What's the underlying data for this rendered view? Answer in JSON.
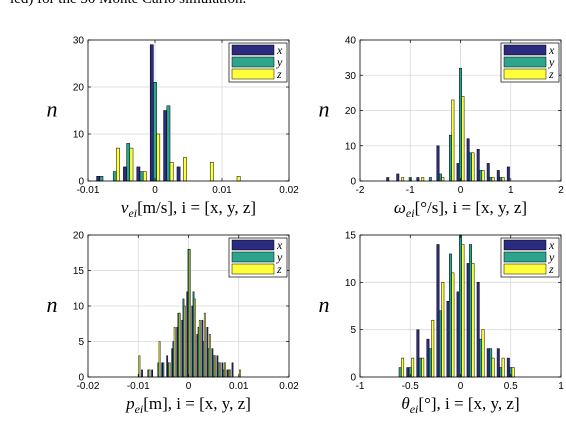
{
  "header_text": "led) for the 50   Monte Carlo simulation.",
  "colors": {
    "x": "#2b2b80",
    "y": "#2ca58d",
    "z": "#ffff3c",
    "edge": "#000000",
    "grid": "#d9d9d9"
  },
  "chart_data": [
    {
      "type": "bar",
      "xlim": [
        -0.01,
        0.02
      ],
      "ylim": [
        0,
        30
      ],
      "xticks": [
        "-0.01",
        "0",
        "0.01",
        "0.02"
      ],
      "xtick_values": [
        -0.01,
        0,
        0.01,
        0.02
      ],
      "yticks": [
        "0",
        "10",
        "20",
        "30"
      ],
      "ytick_values": [
        0,
        10,
        20,
        30
      ],
      "ylabel": "n",
      "xlabel_prefix": "v",
      "xlabel_sub": "ei",
      "xlabel_suffix": "[m/s],  i = [x, y, z]",
      "legend": [
        "x",
        "y",
        "z"
      ],
      "bin_width": 0.002,
      "bar_width_frac": 0.24,
      "series": [
        {
          "name": "x",
          "x": [
            -0.008,
            -0.004,
            -0.002,
            0.0,
            0.002,
            0.004
          ],
          "values": [
            1,
            3,
            3,
            29,
            15,
            3
          ]
        },
        {
          "name": "y",
          "x": [
            -0.008,
            -0.006,
            -0.004,
            -0.002,
            0.0,
            0.002
          ],
          "values": [
            1,
            2,
            8,
            2,
            21,
            16
          ]
        },
        {
          "name": "z",
          "x": [
            -0.006,
            -0.004,
            -0.002,
            0.0,
            0.002,
            0.004,
            0.008,
            0.012
          ],
          "values": [
            7,
            7,
            2,
            10,
            4,
            5,
            4,
            1
          ]
        }
      ]
    },
    {
      "type": "bar",
      "xlim": [
        -2,
        2
      ],
      "ylim": [
        0,
        40
      ],
      "xticks": [
        "-2",
        "-1",
        "0",
        "1",
        "2"
      ],
      "xtick_values": [
        -2,
        -1,
        0,
        1,
        2
      ],
      "yticks": [
        "0",
        "10",
        "20",
        "30",
        "40"
      ],
      "ytick_values": [
        0,
        10,
        20,
        30,
        40
      ],
      "ylabel": "n",
      "xlabel_prefix": "ω",
      "xlabel_sub": "ei",
      "xlabel_suffix": "[°/s],  i = [x, y, z]",
      "legend": [
        "x",
        "y",
        "z"
      ],
      "bin_width": 0.2,
      "bar_width_frac": 0.24,
      "series": [
        {
          "name": "x",
          "x": [
            -1.4,
            -1.2,
            -0.8,
            -0.4,
            0.0,
            0.2,
            0.4,
            0.6,
            0.8,
            1.0
          ],
          "values": [
            1,
            2,
            1,
            10,
            5,
            12,
            9,
            5,
            3,
            4
          ]
        },
        {
          "name": "y",
          "x": [
            -1.0,
            -0.6,
            -0.4,
            -0.2,
            0.0,
            0.2,
            0.4,
            0.6,
            0.8
          ],
          "values": [
            1,
            1,
            2,
            13,
            32,
            8,
            3,
            1,
            1
          ]
        },
        {
          "name": "z",
          "x": [
            -1.2,
            -0.8,
            -0.4,
            -0.2,
            0.0,
            0.2,
            0.4,
            0.6,
            0.8
          ],
          "values": [
            1,
            1,
            1,
            23,
            24,
            8,
            3,
            1,
            1
          ]
        }
      ]
    },
    {
      "type": "bar",
      "xlim": [
        -0.02,
        0.02
      ],
      "ylim": [
        0,
        20
      ],
      "xticks": [
        "-0.02",
        "-0.01",
        "0",
        "0.01",
        "0.02"
      ],
      "xtick_values": [
        -0.02,
        -0.01,
        0,
        0.01,
        0.02
      ],
      "yticks": [
        "0",
        "5",
        "10",
        "15",
        "20"
      ],
      "ytick_values": [
        0,
        5,
        10,
        15,
        20
      ],
      "ylabel": "n",
      "xlabel_prefix": "p",
      "xlabel_sub": "ei",
      "xlabel_suffix": "[m],  i = [x, y, z]",
      "legend": [
        "x",
        "y",
        "z"
      ],
      "bin_width": 0.001,
      "bar_width_frac": 0.24,
      "series": [
        {
          "name": "x",
          "x": [
            -0.009,
            -0.007,
            -0.005,
            -0.004,
            -0.003,
            -0.002,
            -0.001,
            0.0,
            0.001,
            0.002,
            0.003,
            0.004,
            0.005,
            0.006,
            0.007,
            0.008,
            0.009
          ],
          "values": [
            1,
            1,
            2,
            3,
            4,
            7,
            8,
            12,
            10,
            6,
            8,
            7,
            4,
            3,
            2,
            1,
            2
          ]
        },
        {
          "name": "y",
          "x": [
            -0.008,
            -0.006,
            -0.005,
            -0.004,
            -0.003,
            -0.002,
            -0.001,
            0.0,
            0.001,
            0.002,
            0.003,
            0.004,
            0.005,
            0.006,
            0.007,
            0.008
          ],
          "values": [
            1,
            2,
            2,
            2,
            5,
            9,
            11,
            18,
            12,
            7,
            5,
            4,
            3,
            2,
            1,
            1
          ]
        },
        {
          "name": "z",
          "x": [
            -0.01,
            -0.008,
            -0.006,
            -0.004,
            -0.003,
            -0.002,
            -0.001,
            0.0,
            0.001,
            0.002,
            0.003,
            0.004,
            0.005,
            0.006,
            0.007,
            0.008,
            0.01
          ],
          "values": [
            3,
            1,
            5,
            2,
            7,
            9,
            10,
            18,
            11,
            8,
            9,
            6,
            3,
            2,
            2,
            1,
            1
          ]
        }
      ]
    },
    {
      "type": "bar",
      "xlim": [
        -1,
        1
      ],
      "ylim": [
        0,
        15
      ],
      "xticks": [
        "-1",
        "-0.5",
        "0",
        "0.5",
        "1"
      ],
      "xtick_values": [
        -1,
        -0.5,
        0,
        0.5,
        1
      ],
      "yticks": [
        "0",
        "5",
        "10",
        "15"
      ],
      "ytick_values": [
        0,
        5,
        10,
        15
      ],
      "ylabel": "n",
      "xlabel_prefix": "θ",
      "xlabel_sub": "ei",
      "xlabel_suffix": "[°],  i = [x, y, z]",
      "legend": [
        "x",
        "y",
        "z"
      ],
      "bin_width": 0.1,
      "bar_width_frac": 0.24,
      "series": [
        {
          "name": "x",
          "x": [
            -0.5,
            -0.4,
            -0.3,
            -0.2,
            -0.1,
            0.0,
            0.1,
            0.2,
            0.3,
            0.4,
            0.5
          ],
          "values": [
            1,
            5,
            4,
            14,
            8,
            9,
            12,
            10,
            3,
            3,
            2
          ]
        },
        {
          "name": "y",
          "x": [
            -0.6,
            -0.5,
            -0.4,
            -0.3,
            -0.2,
            -0.1,
            0.0,
            0.1,
            0.2,
            0.3,
            0.4,
            0.5
          ],
          "values": [
            1,
            1,
            2,
            3,
            7,
            13,
            15,
            14,
            4,
            3,
            1,
            1
          ]
        },
        {
          "name": "z",
          "x": [
            -0.6,
            -0.5,
            -0.4,
            -0.3,
            -0.2,
            -0.1,
            0.0,
            0.1,
            0.2,
            0.3,
            0.4,
            0.5
          ],
          "values": [
            2,
            2,
            2,
            6,
            10,
            11,
            14,
            12,
            5,
            2,
            2,
            1
          ]
        }
      ]
    }
  ]
}
